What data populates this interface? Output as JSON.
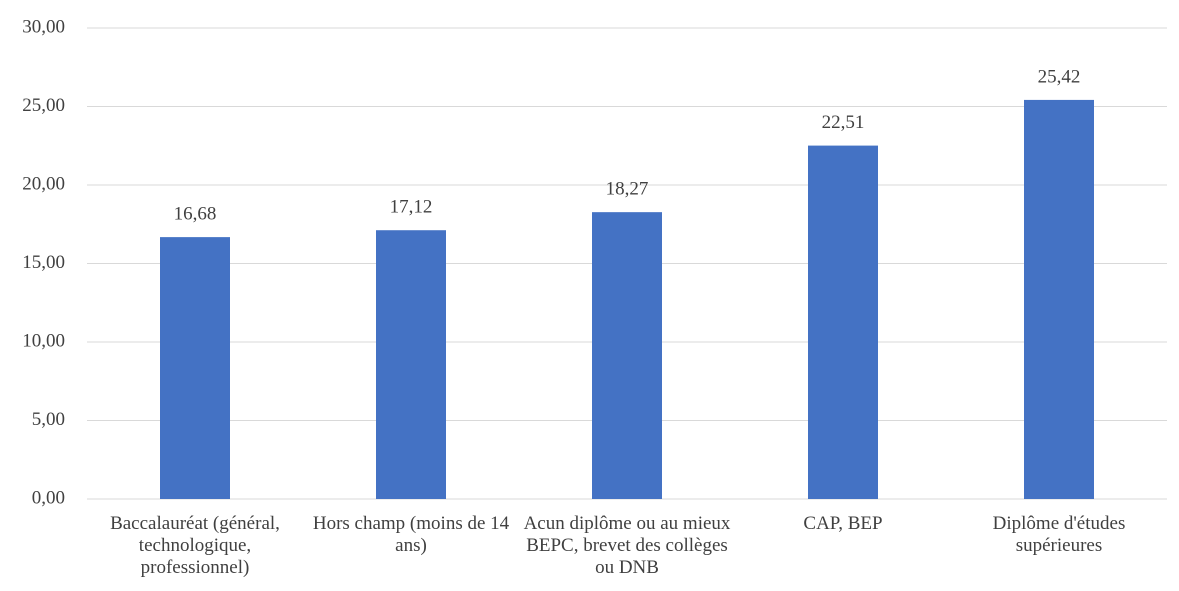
{
  "chart_data": {
    "type": "bar",
    "categories": [
      "Baccalauréat (général, technologique, professionnel)",
      "Hors champ (moins de 14 ans)",
      "Acun diplôme ou au mieux BEPC, brevet des collèges ou DNB",
      "CAP, BEP",
      "Diplôme d'études supérieures"
    ],
    "values": [
      16.68,
      17.12,
      18.27,
      22.51,
      25.42
    ],
    "value_labels": [
      "16,68",
      "17,12",
      "18,27",
      "22,51",
      "25,42"
    ],
    "color": "#4472c4",
    "ylim": [
      0,
      30
    ],
    "yticks": [
      {
        "value": 0,
        "label": "0,00"
      },
      {
        "value": 5,
        "label": "5,00"
      },
      {
        "value": 10,
        "label": "10,00"
      },
      {
        "value": 15,
        "label": "15,00"
      },
      {
        "value": 20,
        "label": "20,00"
      },
      {
        "value": 25,
        "label": "25,00"
      },
      {
        "value": 30,
        "label": "30,00"
      }
    ],
    "grid": true
  }
}
